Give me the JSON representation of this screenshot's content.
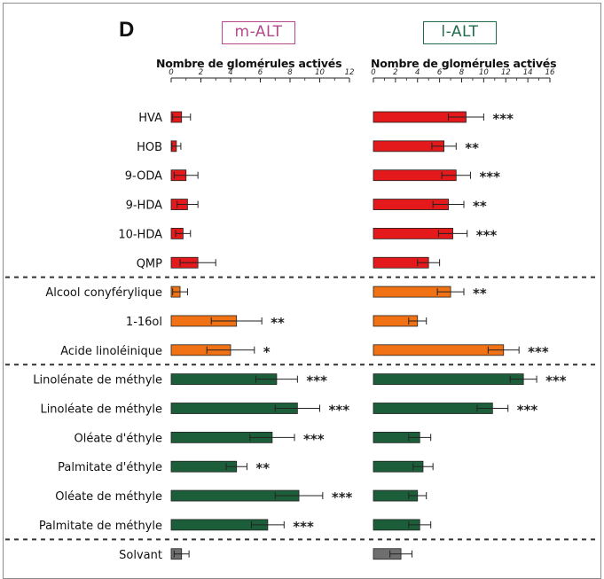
{
  "panel_label": "D",
  "chart_data": [
    {
      "type": "bar",
      "orientation": "horizontal",
      "legend": "m-ALT",
      "xlabel": "Nombre de glomérules activés",
      "xlim": [
        0,
        12
      ],
      "xticks": [
        0,
        2,
        4,
        6,
        8,
        10,
        12
      ],
      "categories": [
        "HVA",
        "HOB",
        "9-ODA",
        "9-HDA",
        "10-HDA",
        "QMP",
        "Alcool conyférylique",
        "1-16ol",
        "Acide linoléinique",
        "Linolénate de méthyle",
        "Linoléate de méthyle",
        "Oléate d'éthyle",
        "Palmitate d'éthyle",
        "Oléate de méthyle",
        "Palmitate de méthyle",
        "Solvant"
      ],
      "values": [
        0.7,
        0.35,
        1.0,
        1.1,
        0.8,
        1.8,
        0.6,
        4.4,
        4.0,
        7.1,
        8.5,
        6.8,
        4.4,
        8.6,
        6.5,
        0.7
      ],
      "errors": [
        0.6,
        0.3,
        0.8,
        0.7,
        0.5,
        1.2,
        0.5,
        1.7,
        1.6,
        1.4,
        1.5,
        1.5,
        0.7,
        1.6,
        1.1,
        0.5
      ],
      "significance": [
        "",
        "",
        "",
        "",
        "",
        "",
        "",
        "**",
        "*",
        "***",
        "***",
        "***",
        "**",
        "***",
        "***",
        ""
      ]
    },
    {
      "type": "bar",
      "orientation": "horizontal",
      "legend": "l-ALT",
      "xlabel": "Nombre de glomérules activés",
      "xlim": [
        0,
        16
      ],
      "xticks": [
        0,
        2,
        4,
        6,
        8,
        10,
        12,
        14,
        16
      ],
      "categories": [
        "HVA",
        "HOB",
        "9-ODA",
        "9-HDA",
        "10-HDA",
        "QMP",
        "Alcool conyférylique",
        "1-16ol",
        "Acide linoléinique",
        "Linolénate de méthyle",
        "Linoléate de méthyle",
        "Oléate d'éthyle",
        "Palmitate d'éthyle",
        "Oléate de méthyle",
        "Palmitate de méthyle",
        "Solvant"
      ],
      "values": [
        8.4,
        6.4,
        7.5,
        6.8,
        7.2,
        5.0,
        7.0,
        4.0,
        11.8,
        13.6,
        10.8,
        4.2,
        4.5,
        4.0,
        4.2,
        2.5
      ],
      "errors": [
        1.6,
        1.1,
        1.3,
        1.4,
        1.3,
        1.0,
        1.2,
        0.8,
        1.4,
        1.2,
        1.4,
        1.0,
        0.9,
        0.8,
        1.0,
        1.0
      ],
      "significance": [
        "***",
        "**",
        "***",
        "**",
        "***",
        "",
        "**",
        "",
        "***",
        "***",
        "***",
        "",
        "",
        "",
        "",
        ""
      ]
    }
  ],
  "groups": [
    {
      "color": "#e3191b",
      "rows": [
        0,
        1,
        2,
        3,
        4,
        5
      ]
    },
    {
      "color": "#f07214",
      "rows": [
        6,
        7,
        8
      ]
    },
    {
      "color": "#1d5e3a",
      "rows": [
        9,
        10,
        11,
        12,
        13,
        14
      ]
    },
    {
      "color": "#6f6f6f",
      "rows": [
        15
      ]
    }
  ]
}
